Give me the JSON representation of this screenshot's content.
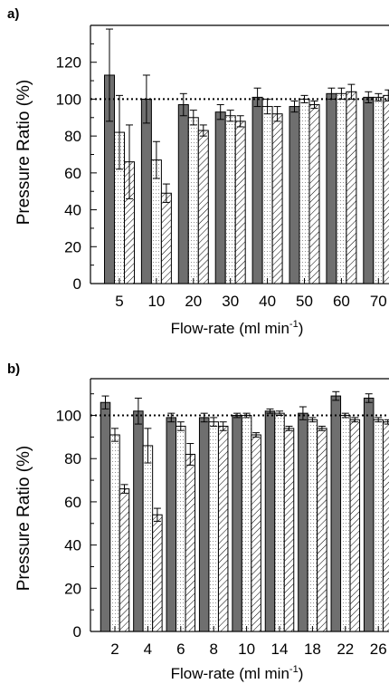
{
  "colors": {
    "dark": "#6f6f6f",
    "light": "#ffffff",
    "hatch_stroke": "#000000"
  },
  "chart_data": [
    {
      "type": "bar",
      "panel_label": "a)",
      "xlabel": "Flow-rate (ml min",
      "xlabel_sup": "-1",
      "xlabel_close": ")",
      "ylabel": "Pressure Ratio (%)",
      "ylim": [
        0,
        140
      ],
      "yticks": [
        0,
        20,
        40,
        60,
        80,
        100,
        120
      ],
      "reference_line": 100,
      "categories": [
        "5",
        "10",
        "20",
        "30",
        "40",
        "50",
        "60",
        "70"
      ],
      "series": [
        {
          "fill": "dark",
          "values": [
            113,
            100,
            97,
            93,
            101,
            96,
            103,
            101
          ],
          "errors": [
            25,
            13,
            6,
            4,
            5,
            3,
            3,
            3
          ]
        },
        {
          "fill": "dotted",
          "values": [
            82,
            67,
            90,
            91,
            96,
            100,
            103,
            101
          ],
          "errors": [
            20,
            10,
            4,
            3,
            4,
            2,
            3,
            2
          ]
        },
        {
          "fill": "hatched",
          "values": [
            66,
            49,
            83,
            88,
            92,
            97,
            104,
            102
          ],
          "errors": [
            20,
            5,
            3,
            3,
            4,
            2,
            4,
            3
          ]
        }
      ]
    },
    {
      "type": "bar",
      "panel_label": "b)",
      "xlabel": "Flow-rate (ml min",
      "xlabel_sup": "-1",
      "xlabel_close": ")",
      "ylabel": "Pressure Ratio (%)",
      "ylim": [
        0,
        117
      ],
      "yticks": [
        0,
        20,
        40,
        60,
        80,
        100
      ],
      "reference_line": 100,
      "categories": [
        "2",
        "4",
        "6",
        "8",
        "10",
        "14",
        "18",
        "22",
        "26"
      ],
      "series": [
        {
          "fill": "dark",
          "values": [
            106,
            102,
            99,
            99,
            100,
            102,
            101,
            109,
            108
          ],
          "errors": [
            3,
            6,
            2,
            2,
            1,
            1,
            3,
            2,
            2
          ]
        },
        {
          "fill": "dotted",
          "values": [
            91,
            86,
            95,
            97,
            100,
            101,
            98,
            100,
            98
          ],
          "errors": [
            3,
            8,
            2,
            2,
            1,
            1,
            1,
            1,
            1
          ]
        },
        {
          "fill": "hatched",
          "values": [
            66,
            54,
            82,
            95,
            91,
            94,
            94,
            98,
            97
          ],
          "errors": [
            2,
            3,
            5,
            2,
            1,
            1,
            1,
            1,
            1
          ]
        }
      ]
    }
  ]
}
